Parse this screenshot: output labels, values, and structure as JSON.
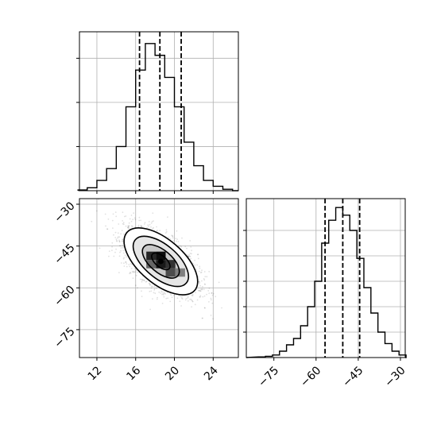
{
  "chart_data": [
    {
      "id": "hist-x",
      "type": "bar",
      "style": "step-histogram",
      "x": [
        10.5,
        11.5,
        12.5,
        13.5,
        14.5,
        15.5,
        16.5,
        17.5,
        18.5,
        19.5,
        20.5,
        21.5,
        22.5,
        23.5,
        24.5,
        25.5
      ],
      "values": [
        0.5,
        2,
        7,
        15,
        30,
        57,
        82,
        100,
        92,
        77,
        57,
        33,
        17,
        7,
        3,
        1
      ],
      "quantiles": [
        16.4,
        18.5,
        20.7
      ],
      "xlim": [
        10.2,
        26.6
      ],
      "ylim": [
        0,
        108
      ],
      "ytick_values": [
        30,
        60,
        90
      ],
      "grid": true
    },
    {
      "id": "scatter-xy",
      "type": "scatter",
      "style": "density-contour",
      "center": [
        18.6,
        -50.5
      ],
      "spread": [
        1.9,
        6.0
      ],
      "correlation": -0.6,
      "n_points": 2500,
      "density_cells": [
        {
          "x": 17.6,
          "y": -48.5,
          "level": 0.85
        },
        {
          "x": 18.6,
          "y": -48.5,
          "level": 0.95
        },
        {
          "x": 18.6,
          "y": -51.5,
          "level": 0.9
        },
        {
          "x": 19.6,
          "y": -51.5,
          "level": 0.8
        },
        {
          "x": 19.6,
          "y": -54.5,
          "level": 0.7
        },
        {
          "x": 17.6,
          "y": -51.5,
          "level": 0.6
        },
        {
          "x": 20.6,
          "y": -54.5,
          "level": 0.5
        }
      ],
      "contour_sigmas": [
        0.5,
        1.0,
        1.5,
        2.0
      ],
      "xlim": [
        10.2,
        26.6
      ],
      "ylim": [
        -85,
        -28
      ],
      "xticks": [
        "12",
        "16",
        "20",
        "24"
      ],
      "yticks": [
        "−30",
        "−45",
        "−60",
        "−75"
      ],
      "xtick_values": [
        12,
        16,
        20,
        24
      ],
      "ytick_values": [
        -30,
        -45,
        -60,
        -75
      ],
      "grid": true
    },
    {
      "id": "hist-y",
      "type": "bar",
      "style": "step-histogram",
      "x": [
        -79.25,
        -76.75,
        -74.25,
        -71.75,
        -69.25,
        -66.75,
        -64.25,
        -61.75,
        -59.25,
        -56.75,
        -54.25,
        -51.75,
        -49.25,
        -46.75,
        -44.25,
        -41.75,
        -39.25,
        -36.75,
        -34.25,
        -31.75,
        -29.25
      ],
      "values": [
        0.5,
        1,
        2,
        5,
        10,
        15,
        25,
        40,
        60,
        90,
        108,
        118,
        112,
        100,
        78,
        55,
        35,
        20,
        11,
        5,
        2
      ],
      "quantiles": [
        -56.8,
        -50.5,
        -44.5
      ],
      "xlim": [
        -84.8,
        -28.3
      ],
      "ylim": [
        0,
        125
      ],
      "xticks": [
        "−75",
        "−60",
        "−45",
        "−30"
      ],
      "xtick_values": [
        -75,
        -60,
        -45,
        -30
      ],
      "ytick_values": [
        20,
        40,
        60,
        80,
        100
      ],
      "grid": true
    }
  ]
}
